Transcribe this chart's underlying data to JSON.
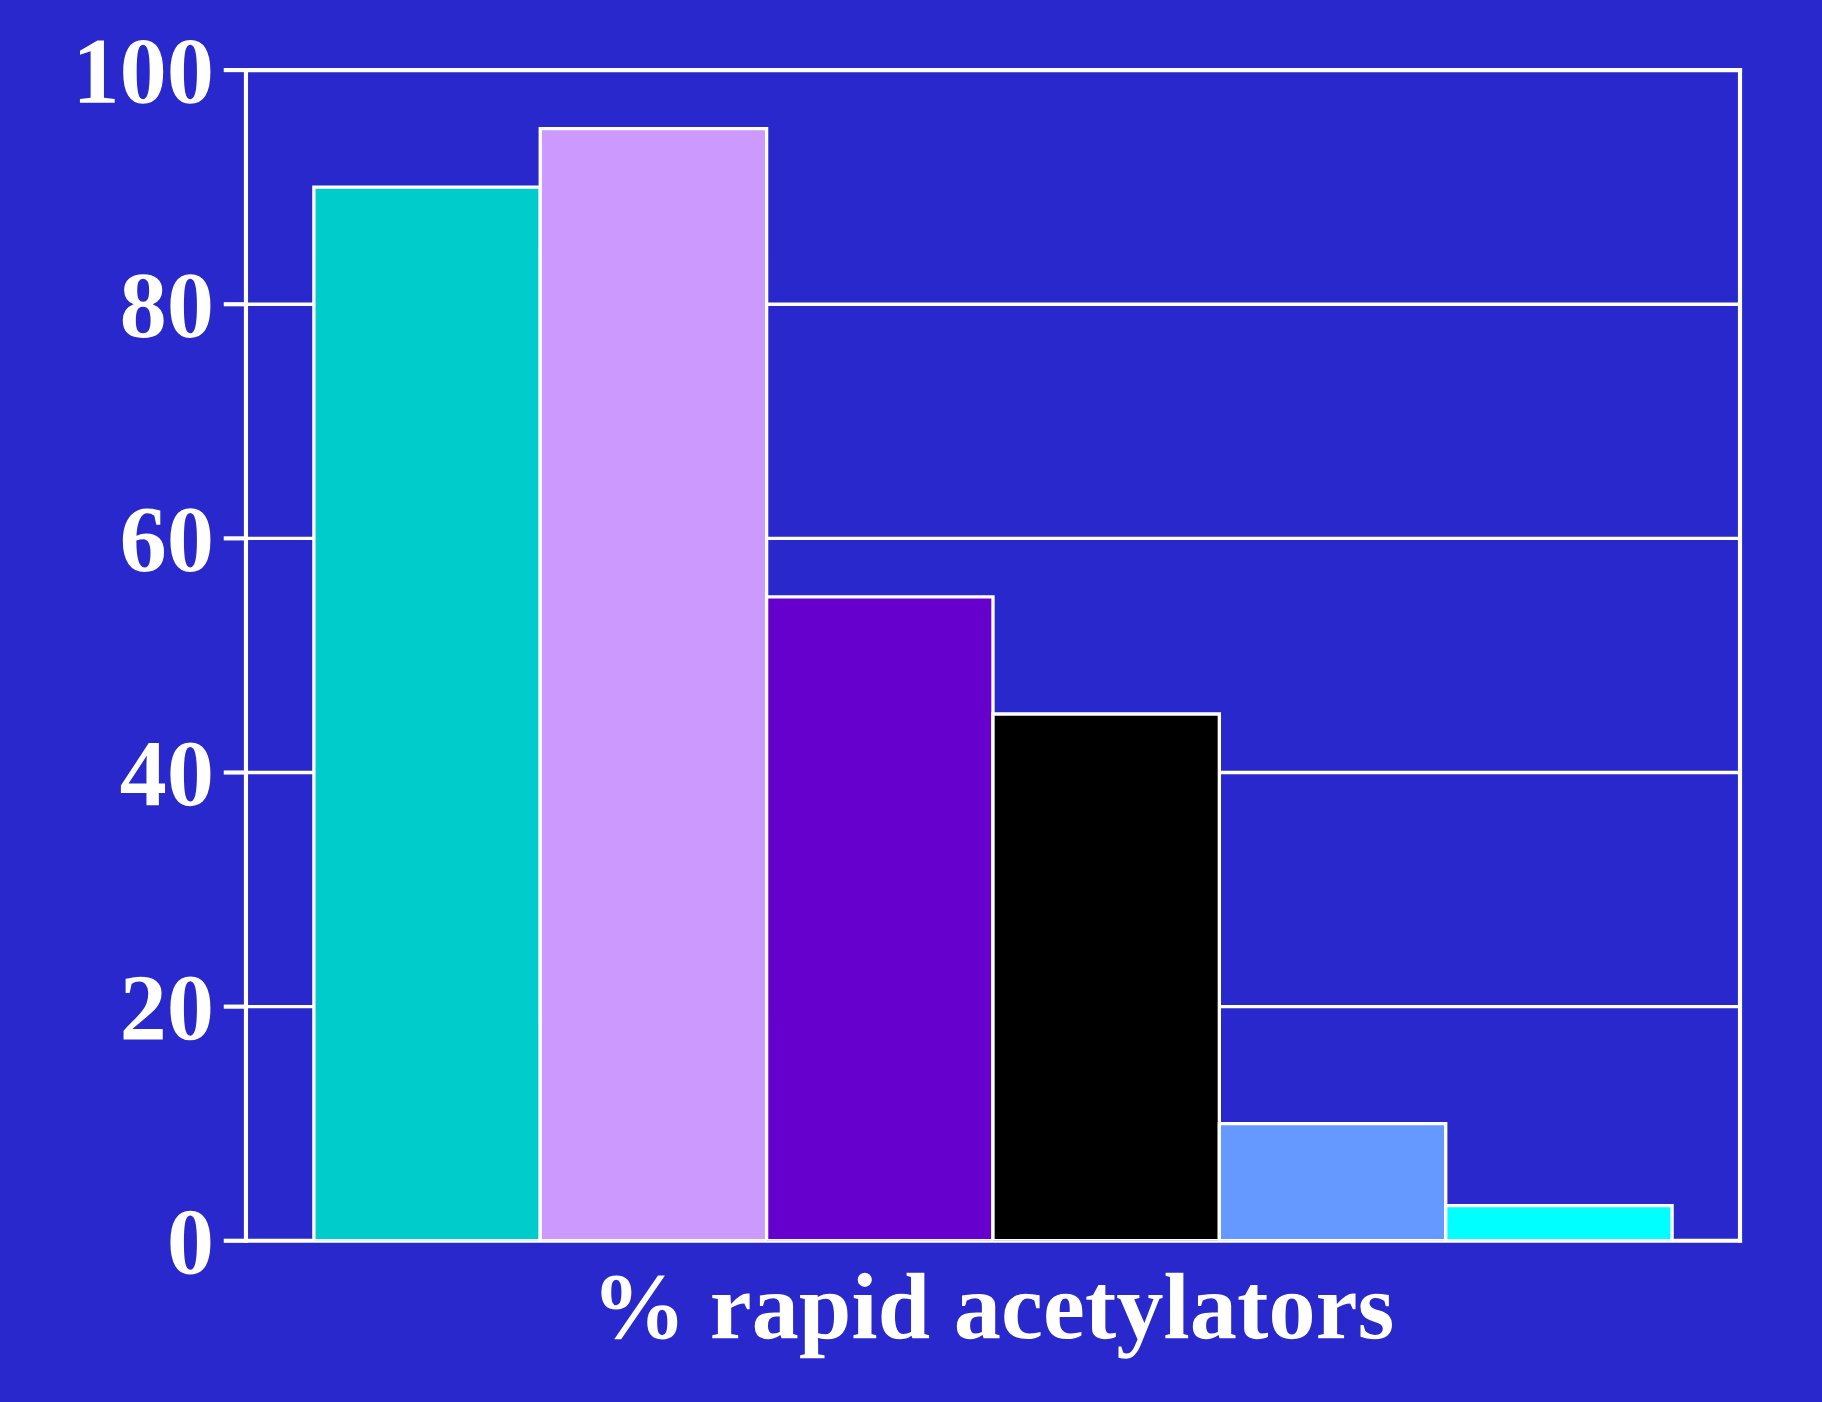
{
  "chart_data": {
    "type": "bar",
    "xlabel": "% rapid acetylators",
    "categories": [
      null,
      null,
      null,
      null,
      null,
      null
    ],
    "values": [
      90,
      95,
      55,
      45,
      10,
      3
    ],
    "colors": [
      "#00cccc",
      "#cc99ff",
      "#6600cc",
      "#000000",
      "#6699ff",
      "#00ffff"
    ],
    "ylim": [
      0,
      100
    ],
    "yticks": [
      0,
      20,
      40,
      60,
      80,
      100
    ],
    "grid": "y"
  }
}
